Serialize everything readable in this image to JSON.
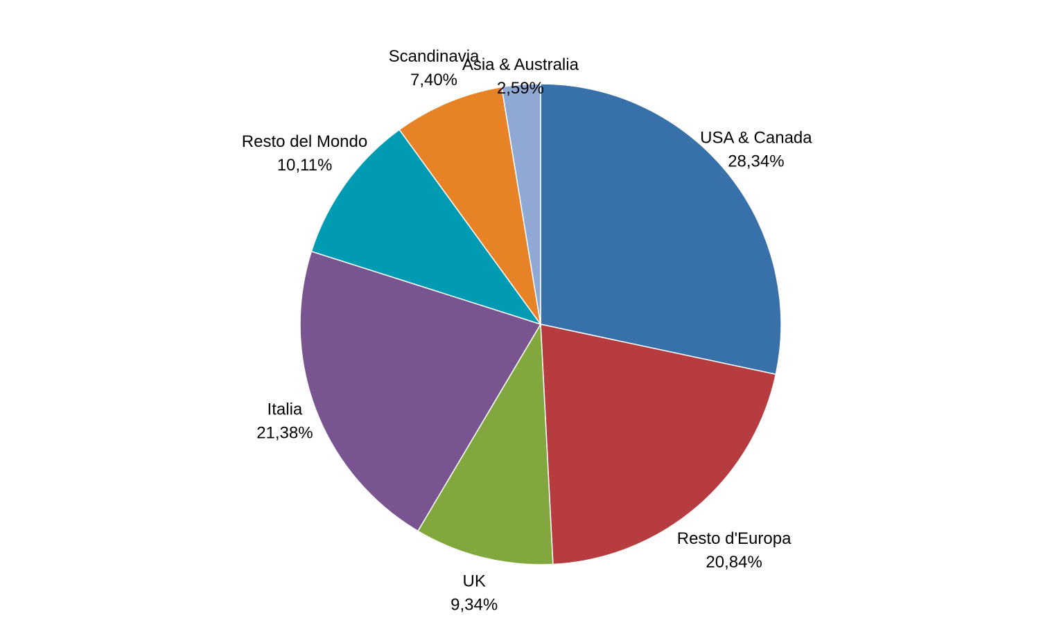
{
  "chart_data": {
    "type": "pie",
    "title": "",
    "start_angle_deg": 0,
    "direction": "clockwise",
    "slices": [
      {
        "name": "USA & Canada",
        "value": 28.34,
        "label": "28,34%",
        "color": "#3870AA"
      },
      {
        "name": "Resto d'Europa",
        "value": 20.84,
        "label": "20,84%",
        "color": "#B73C40"
      },
      {
        "name": "UK",
        "value": 9.34,
        "label": "9,34%",
        "color": "#82A73F"
      },
      {
        "name": "Italia",
        "value": 21.38,
        "label": "21,38%",
        "color": "#785590"
      },
      {
        "name": "Resto del Mondo",
        "value": 10.11,
        "label": "10,11%",
        "color": "#009AB3"
      },
      {
        "name": "Scandinavia",
        "value": 7.4,
        "label": "7,40%",
        "color": "#E88226"
      },
      {
        "name": "Asia & Australia",
        "value": 2.59,
        "label": "2,59%",
        "color": "#8FA9D4"
      }
    ]
  }
}
